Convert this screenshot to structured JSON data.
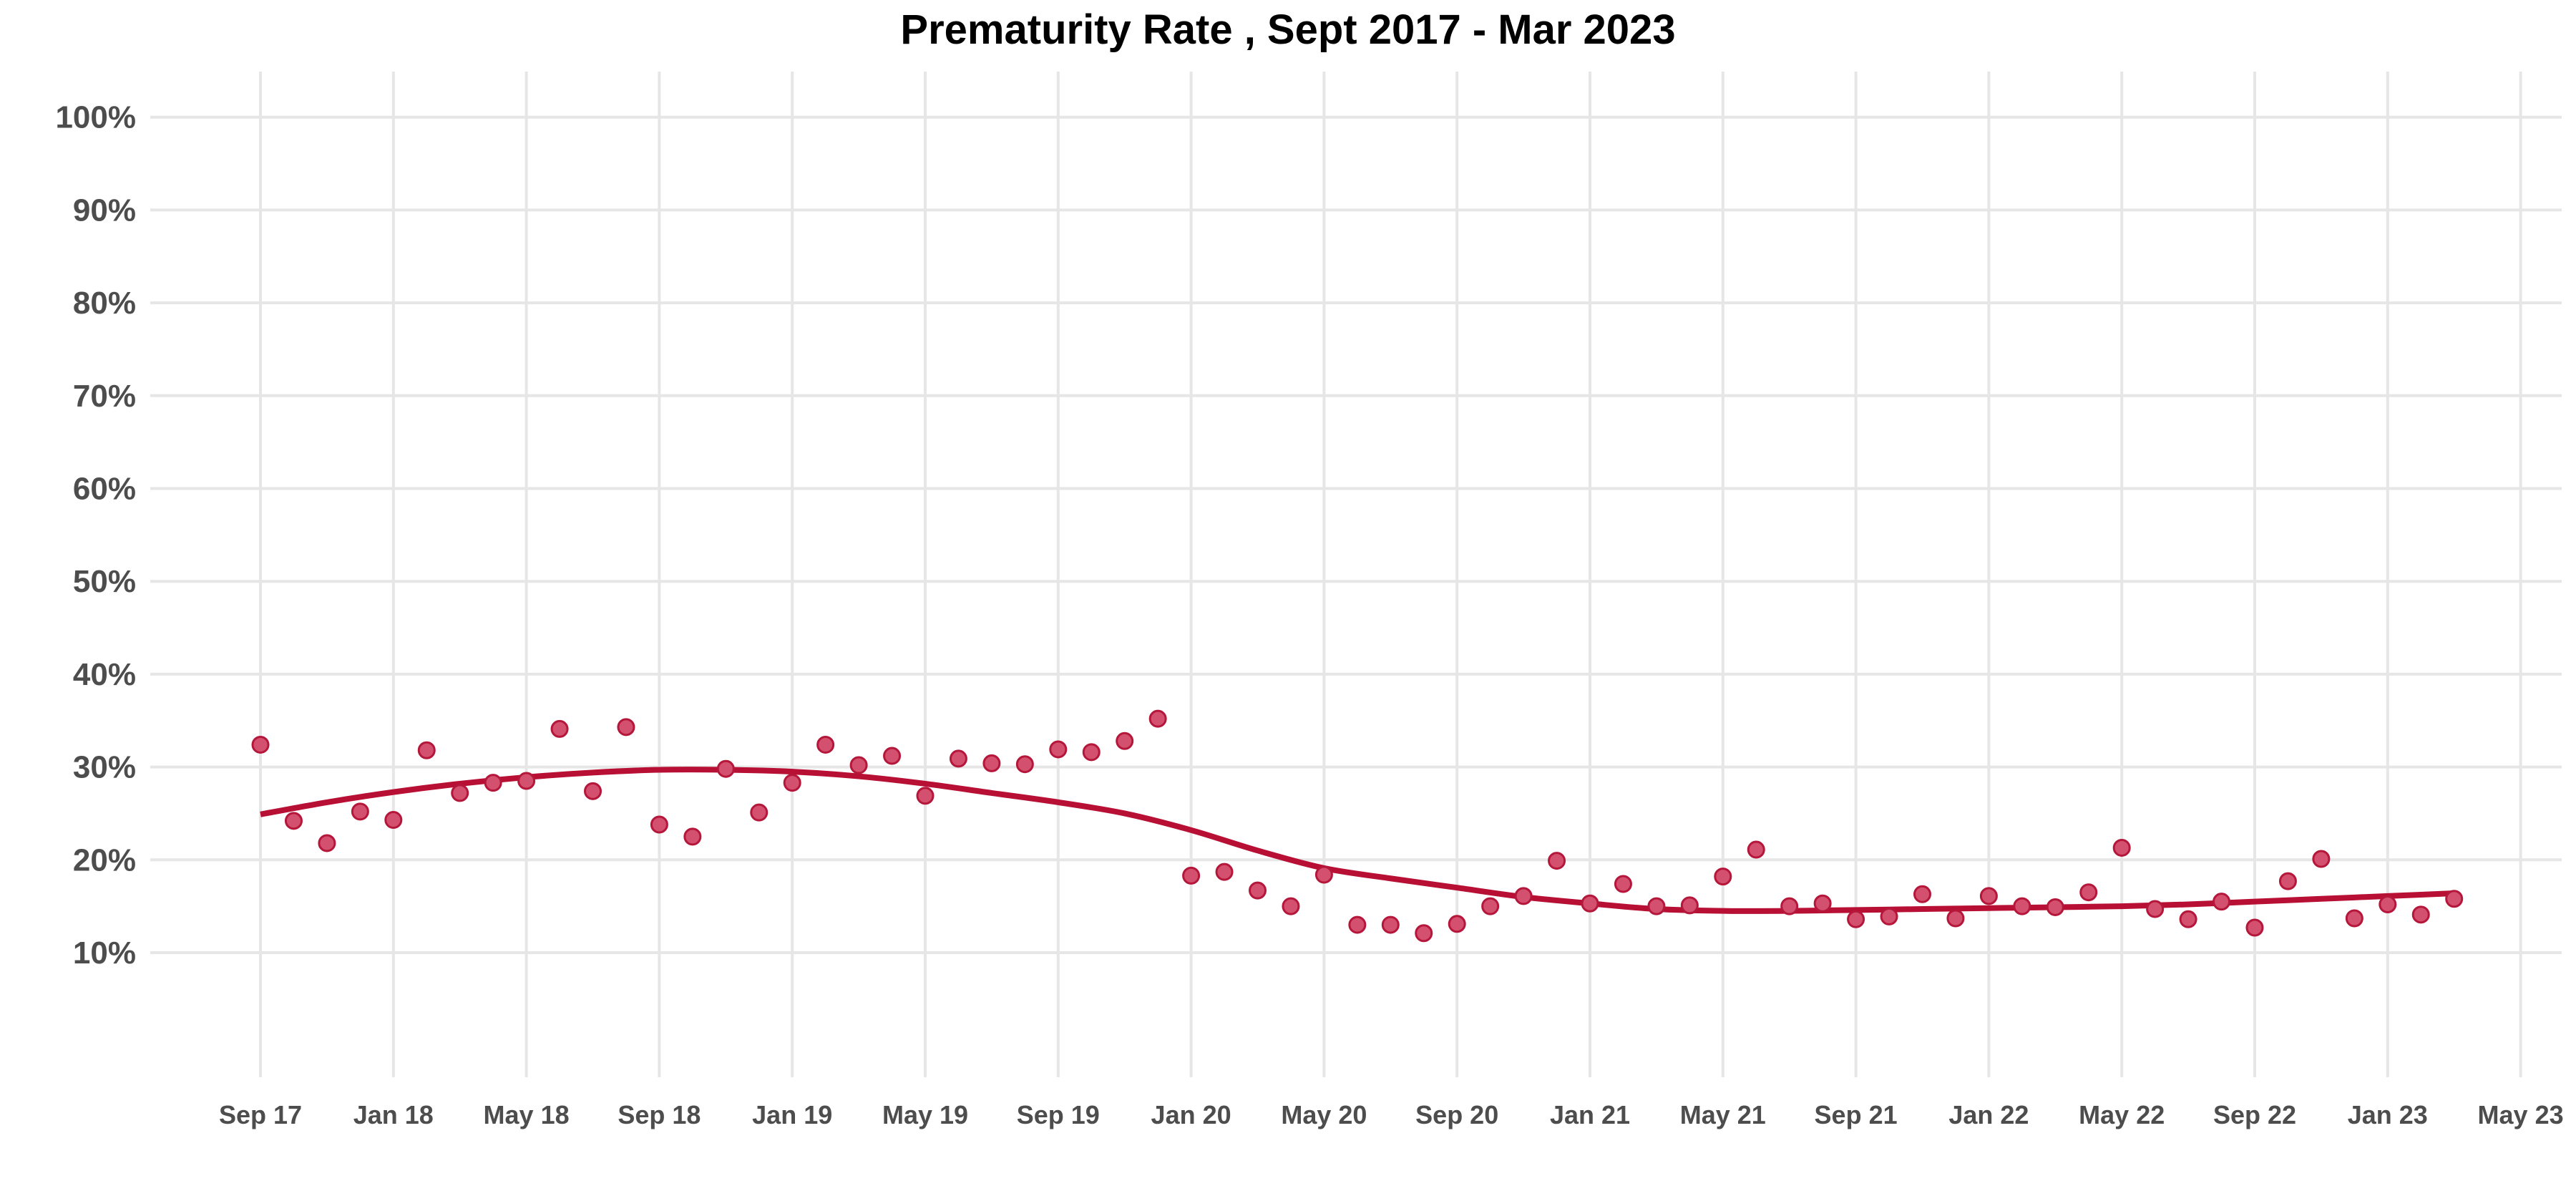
{
  "chart_data": {
    "type": "scatter",
    "title": "Prematurity Rate , Sept 2017 - Mar 2023",
    "xlabel": "",
    "ylabel": "",
    "ylim": [
      0,
      100
    ],
    "y_ticks": [
      "10%",
      "20%",
      "30%",
      "40%",
      "50%",
      "60%",
      "70%",
      "80%",
      "90%",
      "100%"
    ],
    "y_tick_values": [
      10,
      20,
      30,
      40,
      50,
      60,
      70,
      80,
      90,
      100
    ],
    "x_ticks": [
      "Sep 17",
      "Jan 18",
      "May 18",
      "Sep 18",
      "Jan 19",
      "May 19",
      "Sep 19",
      "Jan 20",
      "May 20",
      "Sep 20",
      "Jan 21",
      "May 21",
      "Sep 21",
      "Jan 22",
      "May 22",
      "Sep 22",
      "Jan 23",
      "May 23"
    ],
    "x_tick_months": [
      0,
      4,
      8,
      12,
      16,
      20,
      24,
      28,
      32,
      36,
      40,
      44,
      48,
      52,
      56,
      60,
      64,
      68
    ],
    "x_range_months": [
      -3,
      70
    ],
    "x_origin": "Sep 2017",
    "grid": true,
    "series": [
      {
        "values": [
          [
            0,
            32.4
          ],
          [
            1,
            24.2
          ],
          [
            2,
            21.8
          ],
          [
            3,
            25.2
          ],
          [
            4,
            24.3
          ],
          [
            5,
            31.8
          ],
          [
            6,
            27.2
          ],
          [
            7,
            28.3
          ],
          [
            8,
            28.5
          ],
          [
            9,
            34.1
          ],
          [
            10,
            27.4
          ],
          [
            11,
            34.3
          ],
          [
            12,
            23.8
          ],
          [
            13,
            22.5
          ],
          [
            14,
            29.8
          ],
          [
            15,
            25.1
          ],
          [
            16,
            28.3
          ],
          [
            17,
            32.4
          ],
          [
            18,
            30.2
          ],
          [
            19,
            31.2
          ],
          [
            20,
            26.9
          ],
          [
            21,
            30.9
          ],
          [
            22,
            30.4
          ],
          [
            23,
            30.3
          ],
          [
            24,
            31.9
          ],
          [
            25,
            31.6
          ],
          [
            26,
            32.8
          ],
          [
            27,
            35.2
          ],
          [
            28,
            18.3
          ],
          [
            29,
            18.7
          ],
          [
            30,
            16.7
          ],
          [
            31,
            15.0
          ],
          [
            32,
            18.4
          ],
          [
            33,
            13.0
          ],
          [
            34,
            13.0
          ],
          [
            35,
            12.1
          ],
          [
            36,
            13.1
          ],
          [
            37,
            15.0
          ],
          [
            38,
            16.1
          ],
          [
            39,
            19.9
          ],
          [
            40,
            15.3
          ],
          [
            41,
            17.4
          ],
          [
            42,
            15.0
          ],
          [
            43,
            15.1
          ],
          [
            44,
            18.2
          ],
          [
            45,
            21.1
          ],
          [
            46,
            15.0
          ],
          [
            47,
            15.3
          ],
          [
            48,
            13.6
          ],
          [
            49,
            13.9
          ],
          [
            50,
            16.3
          ],
          [
            51,
            13.7
          ],
          [
            52,
            16.1
          ],
          [
            53,
            15.0
          ],
          [
            54,
            14.9
          ],
          [
            55,
            16.5
          ],
          [
            56,
            21.3
          ],
          [
            57,
            14.7
          ],
          [
            58,
            13.6
          ],
          [
            59,
            15.5
          ],
          [
            60,
            12.7
          ],
          [
            61,
            17.7
          ],
          [
            62,
            20.1
          ],
          [
            63,
            13.7
          ],
          [
            64,
            15.2
          ],
          [
            65,
            14.1
          ],
          [
            66,
            15.8
          ]
        ]
      }
    ],
    "trend": [
      [
        0,
        24.9
      ],
      [
        2,
        26.2
      ],
      [
        4,
        27.3
      ],
      [
        6,
        28.2
      ],
      [
        8,
        28.9
      ],
      [
        10,
        29.4
      ],
      [
        12,
        29.7
      ],
      [
        14,
        29.7
      ],
      [
        16,
        29.5
      ],
      [
        18,
        29.0
      ],
      [
        20,
        28.2
      ],
      [
        22,
        27.2
      ],
      [
        24,
        26.2
      ],
      [
        26,
        25.0
      ],
      [
        28,
        23.2
      ],
      [
        30,
        21.0
      ],
      [
        32,
        19.1
      ],
      [
        34,
        18.0
      ],
      [
        36,
        17.0
      ],
      [
        38,
        16.0
      ],
      [
        40,
        15.3
      ],
      [
        42,
        14.7
      ],
      [
        44,
        14.5
      ],
      [
        46,
        14.5
      ],
      [
        48,
        14.6
      ],
      [
        50,
        14.7
      ],
      [
        52,
        14.8
      ],
      [
        54,
        14.9
      ],
      [
        56,
        15.0
      ],
      [
        58,
        15.2
      ],
      [
        60,
        15.5
      ],
      [
        62,
        15.8
      ],
      [
        64,
        16.1
      ],
      [
        66,
        16.4
      ]
    ],
    "colors": {
      "points": "#d4506f",
      "point_edge": "#b5173b",
      "trend": "#b80f34",
      "grid": "#e6e6e6"
    }
  }
}
